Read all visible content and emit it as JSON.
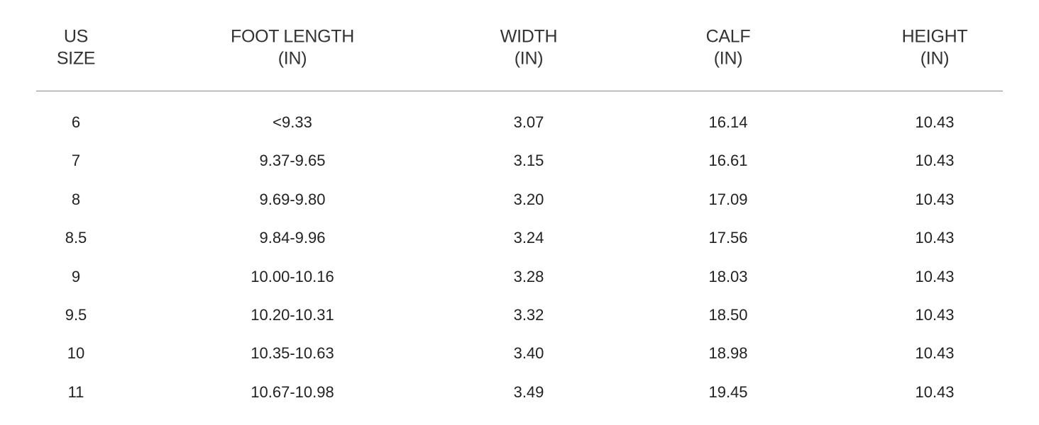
{
  "table": {
    "header": [
      [
        "US",
        "SIZE"
      ],
      [
        "FOOT LENGTH",
        "(IN)"
      ],
      [
        "WIDTH",
        "(IN)"
      ],
      [
        "CALF",
        "(IN)"
      ],
      [
        "HEIGHT",
        "(IN)"
      ]
    ],
    "rows": [
      [
        "6",
        "<9.33",
        "3.07",
        "16.14",
        "10.43"
      ],
      [
        "7",
        "9.37-9.65",
        "3.15",
        "16.61",
        "10.43"
      ],
      [
        "8",
        "9.69-9.80",
        "3.20",
        "17.09",
        "10.43"
      ],
      [
        "8.5",
        "9.84-9.96",
        "3.24",
        "17.56",
        "10.43"
      ],
      [
        "9",
        "10.00-10.16",
        "3.28",
        "18.03",
        "10.43"
      ],
      [
        "9.5",
        "10.20-10.31",
        "3.32",
        "18.50",
        "10.43"
      ],
      [
        "10",
        "10.35-10.63",
        "3.40",
        "18.98",
        "10.43"
      ],
      [
        "11",
        "10.67-10.98",
        "3.49",
        "19.45",
        "10.43"
      ]
    ]
  }
}
